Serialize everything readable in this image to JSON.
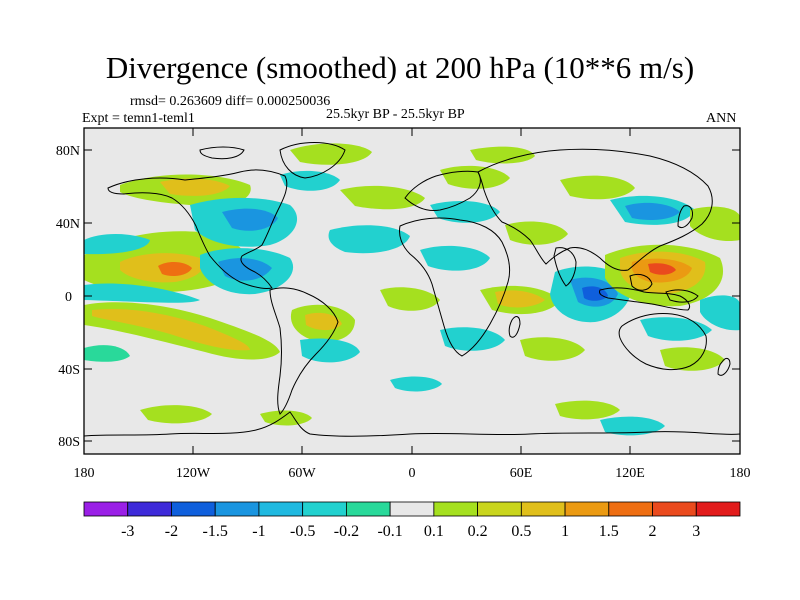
{
  "title": "Divergence (smoothed) at 200 hPa (10**6 m/s)",
  "stats": "rmsd= 0.263609 diff= 0.000250036",
  "expt": "Expt = temn1-teml1",
  "period": "25.5kyr BP - 25.5kyr BP",
  "season": "ANN",
  "y_ticks": [
    "80N",
    "40N",
    "0",
    "40S",
    "80S"
  ],
  "x_ticks": [
    "180",
    "120W",
    "60W",
    "0",
    "60E",
    "120E",
    "180"
  ],
  "colorbar": {
    "colors": [
      "#9a1fe6",
      "#3e2ad9",
      "#0f5fdc",
      "#1a95e0",
      "#1fb9e0",
      "#22d1cf",
      "#29d99a",
      "#e8e8e8",
      "#a5e01f",
      "#c9d51d",
      "#e0bf1b",
      "#eb9a12",
      "#ee6e12",
      "#ea4a1d",
      "#e21c1c"
    ],
    "labels": [
      "-3",
      "-2",
      "-1.5",
      "-1",
      "-0.5",
      "-0.2",
      "-0.1",
      "0.1",
      "0.2",
      "0.5",
      "1",
      "1.5",
      "2",
      "3"
    ]
  }
}
